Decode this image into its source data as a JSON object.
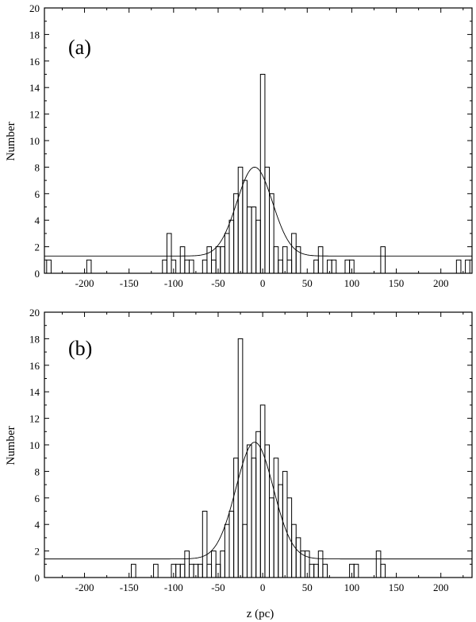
{
  "chart_data": [
    {
      "type": "bar",
      "panel_label": "(a)",
      "title": "",
      "xlabel": "",
      "ylabel": "Number",
      "xlim": [
        -245,
        235
      ],
      "ylim": [
        0,
        20
      ],
      "xticks": [
        -200,
        -150,
        -100,
        -50,
        0,
        50,
        100,
        150,
        200
      ],
      "yticks": [
        0,
        2,
        4,
        6,
        8,
        10,
        12,
        14,
        16,
        18,
        20
      ],
      "bin_width": 5,
      "bins": [
        {
          "x": -240,
          "y": 1
        },
        {
          "x": -195,
          "y": 1
        },
        {
          "x": -110,
          "y": 1
        },
        {
          "x": -105,
          "y": 3
        },
        {
          "x": -100,
          "y": 1
        },
        {
          "x": -90,
          "y": 2
        },
        {
          "x": -85,
          "y": 1
        },
        {
          "x": -80,
          "y": 1
        },
        {
          "x": -65,
          "y": 1
        },
        {
          "x": -60,
          "y": 2
        },
        {
          "x": -55,
          "y": 1
        },
        {
          "x": -50,
          "y": 2
        },
        {
          "x": -45,
          "y": 2
        },
        {
          "x": -40,
          "y": 3
        },
        {
          "x": -35,
          "y": 4
        },
        {
          "x": -30,
          "y": 6
        },
        {
          "x": -25,
          "y": 8
        },
        {
          "x": -20,
          "y": 7
        },
        {
          "x": -15,
          "y": 5
        },
        {
          "x": -10,
          "y": 5
        },
        {
          "x": -5,
          "y": 4
        },
        {
          "x": 0,
          "y": 15
        },
        {
          "x": 5,
          "y": 8
        },
        {
          "x": 10,
          "y": 6
        },
        {
          "x": 15,
          "y": 2
        },
        {
          "x": 20,
          "y": 1
        },
        {
          "x": 25,
          "y": 2
        },
        {
          "x": 30,
          "y": 1
        },
        {
          "x": 35,
          "y": 3
        },
        {
          "x": 40,
          "y": 2
        },
        {
          "x": 60,
          "y": 1
        },
        {
          "x": 65,
          "y": 2
        },
        {
          "x": 75,
          "y": 1
        },
        {
          "x": 80,
          "y": 1
        },
        {
          "x": 95,
          "y": 1
        },
        {
          "x": 100,
          "y": 1
        },
        {
          "x": 135,
          "y": 2
        },
        {
          "x": 220,
          "y": 1
        },
        {
          "x": 230,
          "y": 1
        }
      ],
      "fit": {
        "baseline": 1.3,
        "amplitude": 6.7,
        "center": -9,
        "sigma": 20
      }
    },
    {
      "type": "bar",
      "panel_label": "(b)",
      "title": "",
      "xlabel": "z (pc)",
      "ylabel": "Number",
      "xlim": [
        -245,
        235
      ],
      "ylim": [
        0,
        20
      ],
      "xticks": [
        -200,
        -150,
        -100,
        -50,
        0,
        50,
        100,
        150,
        200
      ],
      "yticks": [
        0,
        2,
        4,
        6,
        8,
        10,
        12,
        14,
        16,
        18,
        20
      ],
      "bin_width": 5,
      "bins": [
        {
          "x": -145,
          "y": 1
        },
        {
          "x": -120,
          "y": 1
        },
        {
          "x": -100,
          "y": 1
        },
        {
          "x": -95,
          "y": 1
        },
        {
          "x": -90,
          "y": 1
        },
        {
          "x": -85,
          "y": 2
        },
        {
          "x": -80,
          "y": 1
        },
        {
          "x": -75,
          "y": 1
        },
        {
          "x": -70,
          "y": 1
        },
        {
          "x": -65,
          "y": 5
        },
        {
          "x": -60,
          "y": 1
        },
        {
          "x": -55,
          "y": 2
        },
        {
          "x": -50,
          "y": 1
        },
        {
          "x": -45,
          "y": 2
        },
        {
          "x": -40,
          "y": 4
        },
        {
          "x": -35,
          "y": 5
        },
        {
          "x": -30,
          "y": 9
        },
        {
          "x": -25,
          "y": 18
        },
        {
          "x": -20,
          "y": 4
        },
        {
          "x": -15,
          "y": 10
        },
        {
          "x": -10,
          "y": 9
        },
        {
          "x": -5,
          "y": 11
        },
        {
          "x": 0,
          "y": 13
        },
        {
          "x": 5,
          "y": 10
        },
        {
          "x": 10,
          "y": 6
        },
        {
          "x": 15,
          "y": 9
        },
        {
          "x": 20,
          "y": 7
        },
        {
          "x": 25,
          "y": 8
        },
        {
          "x": 30,
          "y": 6
        },
        {
          "x": 35,
          "y": 4
        },
        {
          "x": 40,
          "y": 3
        },
        {
          "x": 45,
          "y": 2
        },
        {
          "x": 50,
          "y": 2
        },
        {
          "x": 55,
          "y": 1
        },
        {
          "x": 60,
          "y": 1
        },
        {
          "x": 65,
          "y": 2
        },
        {
          "x": 70,
          "y": 1
        },
        {
          "x": 100,
          "y": 1
        },
        {
          "x": 105,
          "y": 1
        },
        {
          "x": 130,
          "y": 2
        },
        {
          "x": 135,
          "y": 1
        }
      ],
      "fit": {
        "baseline": 1.4,
        "amplitude": 8.8,
        "center": -9,
        "sigma": 21
      }
    }
  ]
}
